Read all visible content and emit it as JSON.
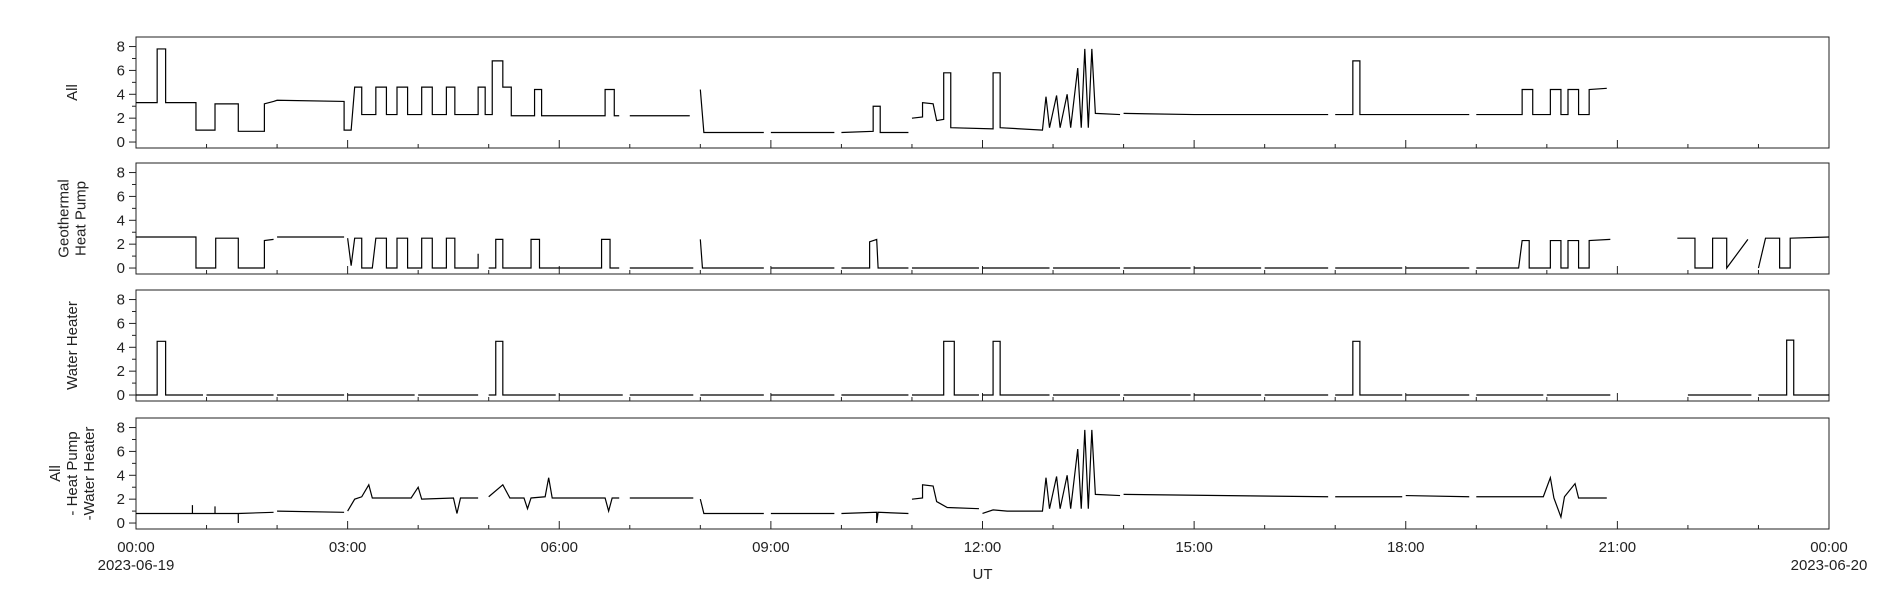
{
  "chart_data": [
    {
      "type": "line",
      "ylabel": [
        "All"
      ],
      "color": "#000000",
      "xlim": [
        0,
        24
      ],
      "ylim": [
        -0.5,
        8.8
      ],
      "yticks": [
        0,
        2,
        4,
        6,
        8
      ],
      "yminorticks": [
        1,
        3,
        5,
        7
      ],
      "x": [
        0,
        0.3,
        0.3,
        0.42,
        0.42,
        0.85,
        0.85,
        1.12,
        1.12,
        1.45,
        1.45,
        1.82,
        1.82,
        1.95,
        2.0,
        2.95,
        2.95,
        3.05,
        3.1,
        3.2,
        3.2,
        3.4,
        3.4,
        3.55,
        3.55,
        3.7,
        3.7,
        3.85,
        3.85,
        4.05,
        4.05,
        4.2,
        4.2,
        4.4,
        4.4,
        4.52,
        4.52,
        4.85,
        4.85,
        4.95,
        4.95,
        5.05,
        5.05,
        5.2,
        5.2,
        5.32,
        5.32,
        5.65,
        5.65,
        5.75,
        5.75,
        6.65,
        6.65,
        6.78,
        6.78,
        6.85,
        null,
        7.0,
        7.85,
        null,
        8.0,
        8.05,
        8.9,
        null,
        9.0,
        9.9,
        null,
        10.0,
        10.45,
        10.45,
        10.55,
        10.55,
        10.95,
        null,
        11.0,
        11.15,
        11.15,
        11.3,
        11.35,
        11.45,
        11.45,
        11.55,
        11.55,
        12.15,
        12.15,
        12.25,
        12.25,
        12.85,
        12.9,
        12.95,
        13.05,
        13.1,
        13.2,
        13.25,
        13.35,
        13.4,
        13.45,
        13.5,
        13.55,
        13.6,
        13.95,
        null,
        14.0,
        15.0,
        16.9,
        null,
        17.0,
        17.25,
        17.25,
        17.35,
        17.35,
        18.9,
        null,
        19.0,
        19.65,
        19.65,
        19.8,
        19.8,
        20.05,
        20.05,
        20.2,
        20.2,
        20.3,
        20.3,
        20.45,
        20.45,
        20.6,
        20.6,
        20.85
      ],
      "values": [
        3.3,
        3.3,
        7.8,
        7.8,
        3.3,
        3.3,
        1.0,
        1.0,
        3.2,
        3.2,
        0.9,
        0.9,
        3.2,
        3.4,
        3.5,
        3.4,
        1.0,
        1.0,
        4.6,
        4.6,
        2.3,
        2.3,
        4.6,
        4.6,
        2.3,
        2.3,
        4.6,
        4.6,
        2.3,
        2.3,
        4.6,
        4.6,
        2.3,
        2.3,
        4.6,
        4.6,
        2.3,
        2.3,
        4.6,
        4.6,
        2.3,
        2.3,
        6.8,
        6.8,
        4.6,
        4.6,
        2.2,
        2.2,
        4.4,
        4.4,
        2.2,
        2.2,
        4.4,
        4.4,
        2.2,
        2.2,
        null,
        2.2,
        2.2,
        null,
        4.4,
        0.8,
        0.8,
        null,
        0.8,
        0.8,
        null,
        0.8,
        0.9,
        3.0,
        3.0,
        0.8,
        0.8,
        null,
        2.0,
        2.1,
        3.3,
        3.2,
        1.8,
        1.9,
        5.8,
        5.8,
        1.2,
        1.1,
        5.8,
        5.8,
        1.2,
        1.0,
        3.8,
        1.2,
        3.9,
        1.2,
        4.0,
        1.2,
        6.2,
        1.2,
        7.8,
        1.2,
        7.8,
        2.4,
        2.3,
        null,
        2.4,
        2.3,
        2.3,
        null,
        2.3,
        2.3,
        6.8,
        6.8,
        2.3,
        2.3,
        null,
        2.3,
        2.3,
        4.4,
        4.4,
        2.3,
        2.3,
        4.4,
        4.4,
        2.3,
        2.3,
        4.4,
        4.4,
        2.3,
        2.3,
        4.4,
        4.5
      ]
    },
    {
      "type": "line",
      "ylabel": [
        "Geothermal",
        "Heat Pump"
      ],
      "color": "#000000",
      "xlim": [
        0,
        24
      ],
      "ylim": [
        -0.5,
        8.8
      ],
      "yticks": [
        0,
        2,
        4,
        6,
        8
      ],
      "yminorticks": [
        1,
        3,
        5,
        7
      ],
      "x": [
        0,
        0.85,
        0.85,
        1.13,
        1.13,
        1.45,
        1.45,
        1.82,
        1.82,
        1.95,
        null,
        2.0,
        2.95,
        null,
        3.0,
        3.05,
        3.1,
        3.2,
        3.2,
        3.35,
        3.4,
        3.55,
        3.55,
        3.7,
        3.7,
        3.85,
        3.85,
        4.05,
        4.05,
        4.2,
        4.2,
        4.4,
        4.4,
        4.52,
        4.52,
        4.85,
        4.85,
        null,
        5.0,
        5.1,
        5.1,
        5.2,
        5.2,
        5.6,
        5.6,
        5.72,
        5.72,
        6.6,
        6.6,
        6.72,
        6.72,
        6.85,
        null,
        7.0,
        7.9,
        null,
        8.0,
        8.03,
        8.9,
        null,
        9.0,
        9.9,
        null,
        10.0,
        10.4,
        10.4,
        10.5,
        10.52,
        10.95,
        null,
        11.0,
        11.95,
        null,
        12.0,
        12.95,
        null,
        13.0,
        13.95,
        null,
        14.0,
        14.95,
        null,
        15.0,
        15.95,
        null,
        16.0,
        16.9,
        null,
        17.0,
        17.95,
        null,
        18.0,
        18.9,
        null,
        19.0,
        19.6,
        19.65,
        19.75,
        19.75,
        20.05,
        20.05,
        20.2,
        20.2,
        20.3,
        20.3,
        20.45,
        20.45,
        20.6,
        20.6,
        20.9,
        null,
        21.85,
        22.1,
        22.1,
        22.35,
        22.35,
        22.55,
        22.55,
        22.85,
        null,
        23.0,
        23.1,
        23.3,
        23.3,
        23.45,
        23.45,
        24.0
      ],
      "values": [
        2.6,
        2.6,
        0,
        0,
        2.5,
        2.5,
        0,
        0,
        2.3,
        2.4,
        null,
        2.6,
        2.6,
        null,
        2.5,
        0.2,
        2.5,
        2.5,
        0,
        0,
        2.5,
        2.5,
        0,
        0,
        2.5,
        2.5,
        0,
        0,
        2.5,
        2.5,
        0,
        0,
        2.5,
        2.5,
        0,
        0,
        1.2,
        null,
        0,
        0,
        2.4,
        2.4,
        0,
        0,
        2.4,
        2.4,
        0,
        0,
        2.4,
        2.4,
        0,
        0,
        null,
        0,
        0,
        null,
        2.4,
        0,
        0,
        null,
        0,
        0,
        null,
        0,
        0,
        2.2,
        2.4,
        0,
        0,
        null,
        0,
        0,
        null,
        0,
        0,
        null,
        0,
        0,
        null,
        0,
        0,
        null,
        0,
        0,
        null,
        0,
        0,
        null,
        0,
        0,
        null,
        0,
        0,
        null,
        0,
        0,
        2.3,
        2.3,
        0,
        0,
        2.3,
        2.3,
        0,
        0,
        2.3,
        2.3,
        0,
        0,
        2.3,
        2.4,
        null,
        2.5,
        2.5,
        0,
        0,
        2.5,
        2.5,
        0,
        2.4,
        null,
        0,
        2.5,
        2.5,
        0,
        0,
        2.5,
        2.6
      ]
    },
    {
      "type": "line",
      "ylabel": [
        "Water Heater"
      ],
      "color": "#000000",
      "xlim": [
        0,
        24
      ],
      "ylim": [
        -0.5,
        8.8
      ],
      "yticks": [
        0,
        2,
        4,
        6,
        8
      ],
      "yminorticks": [
        1,
        3,
        5,
        7
      ],
      "x": [
        0,
        0.3,
        0.3,
        0.42,
        0.42,
        0.95,
        null,
        1.0,
        1.95,
        null,
        2.0,
        2.95,
        null,
        3.0,
        3.95,
        null,
        4.0,
        4.85,
        null,
        5.0,
        5.1,
        5.1,
        5.2,
        5.2,
        5.95,
        null,
        6.0,
        6.9,
        null,
        7.0,
        7.9,
        null,
        8.0,
        8.9,
        null,
        9.0,
        9.9,
        null,
        10.0,
        10.95,
        null,
        11.0,
        11.45,
        11.45,
        11.6,
        11.6,
        11.95,
        null,
        12.0,
        12.15,
        12.15,
        12.25,
        12.25,
        12.95,
        null,
        13.0,
        13.95,
        null,
        14.0,
        14.95,
        null,
        15.0,
        15.95,
        null,
        16.0,
        16.9,
        null,
        17.0,
        17.25,
        17.25,
        17.35,
        17.35,
        17.95,
        null,
        18.0,
        18.9,
        null,
        19.0,
        19.95,
        null,
        20.0,
        20.9,
        null,
        22.0,
        22.9,
        null,
        23.0,
        23.4,
        23.4,
        23.5,
        23.5,
        24.0
      ],
      "values": [
        0,
        0,
        4.5,
        4.5,
        0,
        0,
        null,
        0,
        0,
        null,
        0,
        0,
        null,
        0,
        0,
        null,
        0,
        0,
        null,
        0,
        0,
        4.5,
        4.5,
        0,
        0,
        null,
        0,
        0,
        null,
        0,
        0,
        null,
        0,
        0,
        null,
        0,
        0,
        null,
        0,
        0,
        null,
        0,
        0,
        4.5,
        4.5,
        0,
        0,
        null,
        0,
        0,
        4.5,
        4.5,
        0,
        0,
        null,
        0,
        0,
        null,
        0,
        0,
        null,
        0,
        0,
        null,
        0,
        0,
        null,
        0,
        0,
        4.5,
        4.5,
        0,
        0,
        null,
        0,
        0,
        null,
        0,
        0,
        null,
        0,
        0,
        null,
        0,
        0,
        null,
        0,
        0,
        4.6,
        4.6,
        0,
        0
      ]
    },
    {
      "type": "line",
      "ylabel": [
        "All",
        "- Heat Pump",
        "-Water Heater"
      ],
      "color": "#000000",
      "xlim": [
        0,
        24
      ],
      "ylim": [
        -0.5,
        8.8
      ],
      "yticks": [
        0,
        2,
        4,
        6,
        8
      ],
      "yminorticks": [
        1,
        3,
        5,
        7
      ],
      "xlabel": "UT",
      "xticks": [
        {
          "value": 0,
          "label": "00:00"
        },
        {
          "value": 3,
          "label": "03:00"
        },
        {
          "value": 6,
          "label": "06:00"
        },
        {
          "value": 9,
          "label": "09:00"
        },
        {
          "value": 12,
          "label": "12:00"
        },
        {
          "value": 15,
          "label": "15:00"
        },
        {
          "value": 18,
          "label": "18:00"
        },
        {
          "value": 21,
          "label": "21:00"
        },
        {
          "value": 24,
          "label": "00:00"
        }
      ],
      "xtick_dates": [
        {
          "value": 0,
          "label": "2023-06-19"
        },
        {
          "value": 24,
          "label": "2023-06-20"
        }
      ],
      "xminorticks": [
        1,
        2,
        4,
        5,
        7,
        8,
        10,
        11,
        13,
        14,
        16,
        17,
        19,
        20,
        22,
        23
      ],
      "x": [
        0,
        0.8,
        0.8,
        0.8,
        1.12,
        1.12,
        1.12,
        1.45,
        1.45,
        1.45,
        1.95,
        null,
        2.0,
        2.95,
        null,
        3.0,
        3.1,
        3.2,
        3.3,
        3.35,
        3.9,
        4.0,
        4.05,
        4.5,
        4.55,
        4.6,
        4.85,
        null,
        5.0,
        5.2,
        5.3,
        5.5,
        5.55,
        5.6,
        5.8,
        5.85,
        5.9,
        6.65,
        6.7,
        6.75,
        6.85,
        null,
        7.0,
        7.9,
        null,
        8.0,
        8.05,
        8.9,
        null,
        9.0,
        9.9,
        null,
        10.0,
        10.5,
        10.5,
        10.52,
        10.95,
        null,
        11.0,
        11.15,
        11.15,
        11.3,
        11.35,
        11.5,
        11.95,
        null,
        12.0,
        12.15,
        12.35,
        12.85,
        12.9,
        12.95,
        13.05,
        13.1,
        13.2,
        13.25,
        13.35,
        13.4,
        13.45,
        13.5,
        13.55,
        13.6,
        13.95,
        null,
        14.0,
        16.9,
        null,
        17.0,
        17.95,
        null,
        18.0,
        18.9,
        null,
        19.0,
        19.95,
        20.05,
        20.1,
        20.2,
        20.25,
        20.4,
        20.45,
        20.85
      ],
      "values": [
        0.8,
        0.8,
        1.5,
        0.8,
        0.8,
        1.4,
        0.8,
        0.8,
        0,
        0.8,
        0.9,
        null,
        1.0,
        0.9,
        null,
        1.0,
        2.0,
        2.2,
        3.2,
        2.1,
        2.1,
        3.0,
        2.0,
        2.1,
        0.8,
        2.1,
        2.1,
        null,
        2.2,
        3.2,
        2.1,
        2.1,
        1.2,
        2.1,
        2.2,
        3.8,
        2.1,
        2.1,
        1.0,
        2.1,
        2.1,
        null,
        2.1,
        2.1,
        null,
        2.0,
        0.8,
        0.8,
        null,
        0.8,
        0.8,
        null,
        0.8,
        0.9,
        0,
        0.9,
        0.8,
        null,
        2.0,
        2.1,
        3.2,
        3.1,
        1.8,
        1.3,
        1.2,
        null,
        0.8,
        1.1,
        1.0,
        1.0,
        3.8,
        1.2,
        3.9,
        1.2,
        4.0,
        1.2,
        6.2,
        1.2,
        7.8,
        1.2,
        7.8,
        2.4,
        2.3,
        null,
        2.4,
        2.2,
        null,
        2.2,
        2.2,
        null,
        2.3,
        2.2,
        null,
        2.2,
        2.2,
        3.8,
        2.1,
        0.5,
        2.2,
        3.3,
        2.1,
        2.1
      ]
    }
  ]
}
